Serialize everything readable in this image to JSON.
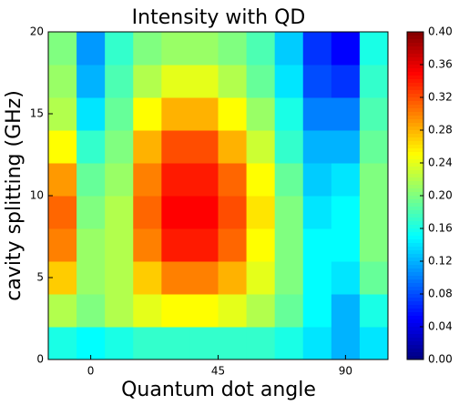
{
  "chart_data": {
    "type": "heatmap",
    "title": "Intensity with QD",
    "xlabel": "Quantum dot angle",
    "ylabel": "cavity splitting (GHz)",
    "x_bins": [
      -15,
      -5,
      5,
      15,
      25,
      35,
      45,
      55,
      65,
      75,
      85,
      95,
      105
    ],
    "y_bins": [
      0,
      2,
      4,
      6,
      8,
      10,
      12,
      14,
      16,
      18,
      20
    ],
    "z": [
      [
        0.16,
        0.15,
        0.16,
        0.17,
        0.17,
        0.17,
        0.17,
        0.17,
        0.16,
        0.14,
        0.12,
        0.14
      ],
      [
        0.22,
        0.2,
        0.22,
        0.24,
        0.25,
        0.25,
        0.24,
        0.22,
        0.19,
        0.15,
        0.12,
        0.16
      ],
      [
        0.27,
        0.21,
        0.22,
        0.27,
        0.3,
        0.3,
        0.28,
        0.24,
        0.2,
        0.15,
        0.14,
        0.19
      ],
      [
        0.3,
        0.21,
        0.22,
        0.3,
        0.34,
        0.34,
        0.31,
        0.25,
        0.2,
        0.15,
        0.15,
        0.2
      ],
      [
        0.31,
        0.2,
        0.22,
        0.31,
        0.35,
        0.35,
        0.32,
        0.26,
        0.2,
        0.14,
        0.15,
        0.2
      ],
      [
        0.29,
        0.19,
        0.21,
        0.3,
        0.34,
        0.34,
        0.31,
        0.25,
        0.19,
        0.13,
        0.14,
        0.2
      ],
      [
        0.25,
        0.17,
        0.2,
        0.28,
        0.32,
        0.32,
        0.28,
        0.23,
        0.17,
        0.12,
        0.12,
        0.19
      ],
      [
        0.22,
        0.14,
        0.19,
        0.25,
        0.28,
        0.28,
        0.25,
        0.21,
        0.16,
        0.1,
        0.1,
        0.18
      ],
      [
        0.21,
        0.12,
        0.18,
        0.22,
        0.24,
        0.24,
        0.22,
        0.19,
        0.14,
        0.08,
        0.07,
        0.17
      ],
      [
        0.2,
        0.11,
        0.17,
        0.2,
        0.21,
        0.21,
        0.2,
        0.18,
        0.13,
        0.07,
        0.05,
        0.16
      ]
    ],
    "xlim": [
      -15,
      105
    ],
    "xticks": [
      0,
      45,
      90
    ],
    "ylim": [
      0,
      20
    ],
    "yticks": [
      0,
      5,
      10,
      15,
      20
    ],
    "clim": [
      0,
      0.4
    ],
    "cticks": [
      {
        "value": 0,
        "label": "0.00"
      },
      0.04,
      0.08,
      0.12,
      0.16,
      {
        "value": 0.2,
        "label": "0.20"
      },
      0.24,
      0.28,
      0.32,
      0.36,
      {
        "value": 0.4,
        "label": "0.40"
      }
    ],
    "colormap": "jet"
  }
}
